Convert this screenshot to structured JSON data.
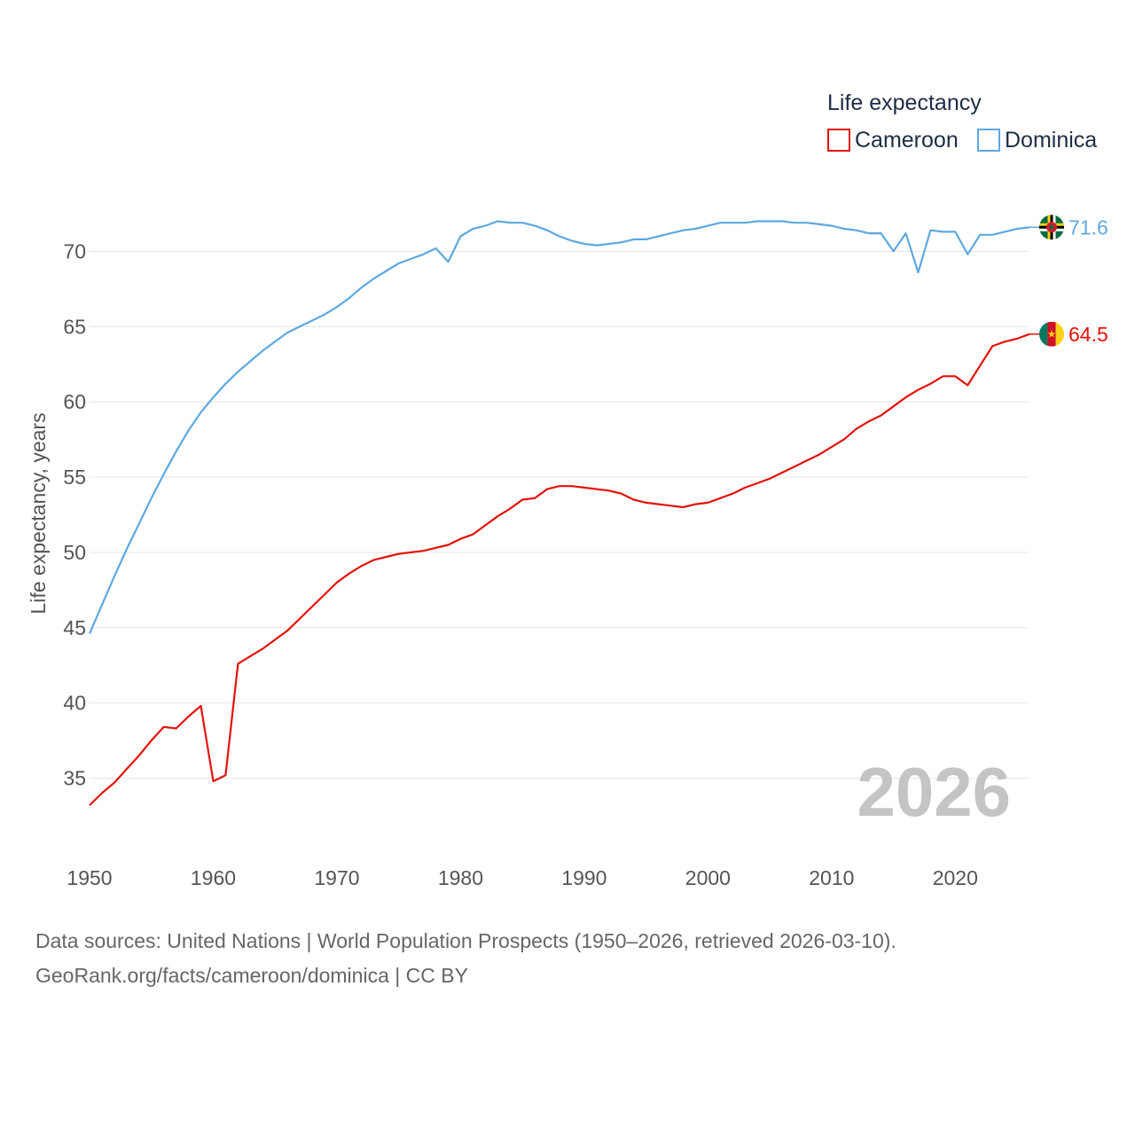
{
  "chart_data": {
    "type": "line",
    "title": "",
    "xlabel": "",
    "ylabel": "Life expectancy, years",
    "legend_title": "Life expectancy",
    "legend_position": "top-right",
    "current_year": "2026",
    "xlim": [
      1950,
      2026
    ],
    "ylim": [
      32.5,
      72.5
    ],
    "x_ticks": [
      1950,
      1960,
      1970,
      1980,
      1990,
      2000,
      2010,
      2020
    ],
    "y_ticks": [
      35,
      40,
      45,
      50,
      55,
      60,
      65,
      70
    ],
    "x": [
      1950,
      1951,
      1952,
      1953,
      1954,
      1955,
      1956,
      1957,
      1958,
      1959,
      1960,
      1961,
      1962,
      1963,
      1964,
      1965,
      1966,
      1967,
      1968,
      1969,
      1970,
      1971,
      1972,
      1973,
      1974,
      1975,
      1976,
      1977,
      1978,
      1979,
      1980,
      1981,
      1982,
      1983,
      1984,
      1985,
      1986,
      1987,
      1988,
      1989,
      1990,
      1991,
      1992,
      1993,
      1994,
      1995,
      1996,
      1997,
      1998,
      1999,
      2000,
      2001,
      2002,
      2003,
      2004,
      2005,
      2006,
      2007,
      2008,
      2009,
      2010,
      2011,
      2012,
      2013,
      2014,
      2015,
      2016,
      2017,
      2018,
      2019,
      2020,
      2021,
      2022,
      2023,
      2024,
      2025,
      2026
    ],
    "series": [
      {
        "name": "Cameroon",
        "color": "#e3120b",
        "end_label": "64.5",
        "flag": "cameroon-flag",
        "values": [
          33.2,
          34.0,
          34.7,
          35.6,
          36.5,
          37.5,
          38.4,
          38.3,
          39.1,
          39.8,
          34.8,
          35.2,
          42.6,
          43.1,
          43.6,
          44.2,
          44.8,
          45.6,
          46.4,
          47.2,
          48.0,
          48.6,
          49.1,
          49.5,
          49.7,
          49.9,
          50.0,
          50.1,
          50.3,
          50.5,
          50.9,
          51.2,
          51.8,
          52.4,
          52.9,
          53.5,
          53.6,
          54.2,
          54.4,
          54.4,
          54.3,
          54.2,
          54.1,
          53.9,
          53.5,
          53.3,
          53.2,
          53.1,
          53.0,
          53.2,
          53.3,
          53.6,
          53.9,
          54.3,
          54.6,
          54.9,
          55.3,
          55.7,
          56.1,
          56.5,
          57.0,
          57.5,
          58.2,
          58.7,
          59.1,
          59.7,
          60.3,
          60.8,
          61.2,
          61.7,
          61.7,
          61.1,
          62.4,
          63.7,
          64.0,
          64.2,
          64.5
        ]
      },
      {
        "name": "Dominica",
        "color": "#5ea8e0",
        "end_label": "71.6",
        "flag": "dominica-flag",
        "values": [
          44.6,
          46.5,
          48.4,
          50.2,
          51.9,
          53.6,
          55.2,
          56.7,
          58.1,
          59.3,
          60.3,
          61.2,
          62.0,
          62.7,
          63.4,
          64.0,
          64.6,
          65.0,
          65.4,
          65.8,
          66.3,
          66.9,
          67.6,
          68.2,
          68.7,
          69.2,
          69.5,
          69.8,
          70.2,
          69.3,
          71.0,
          71.5,
          71.7,
          72.0,
          71.9,
          71.9,
          71.7,
          71.4,
          71.0,
          70.7,
          70.5,
          70.4,
          70.5,
          70.6,
          70.8,
          70.8,
          71.0,
          71.2,
          71.4,
          71.5,
          71.7,
          71.9,
          71.9,
          71.9,
          72.0,
          72.0,
          72.0,
          71.9,
          71.9,
          71.8,
          71.7,
          71.5,
          71.4,
          71.2,
          71.2,
          70.0,
          71.2,
          68.6,
          71.4,
          71.3,
          71.3,
          69.8,
          71.1,
          71.1,
          71.3,
          71.5,
          71.6
        ]
      }
    ]
  },
  "footer": {
    "line1": "Data sources: United Nations | World Population Prospects (1950–2026, retrieved 2026-03-10).",
    "line2": "GeoRank.org/facts/cameroon/dominica | CC BY"
  }
}
